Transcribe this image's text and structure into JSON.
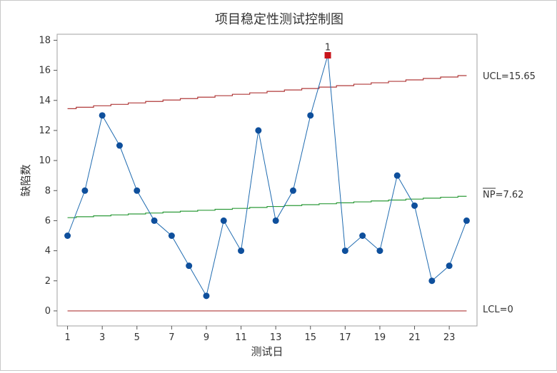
{
  "chart_data": {
    "type": "line",
    "title": "项目稳定性测试控制图",
    "xlabel": "测试日",
    "ylabel": "缺陷数",
    "x": [
      1,
      2,
      3,
      4,
      5,
      6,
      7,
      8,
      9,
      10,
      11,
      12,
      13,
      14,
      15,
      16,
      17,
      18,
      19,
      20,
      21,
      22,
      23,
      24
    ],
    "series": [
      {
        "values": [
          5,
          8,
          13,
          11,
          8,
          6,
          5,
          3,
          1,
          6,
          4,
          12,
          6,
          8,
          13,
          17,
          4,
          5,
          4,
          9,
          7,
          2,
          3,
          6
        ]
      }
    ],
    "xticks": [
      "1",
      "3",
      "5",
      "7",
      "9",
      "11",
      "13",
      "15",
      "17",
      "19",
      "21",
      "23"
    ],
    "yticks": [
      "0",
      "2",
      "4",
      "6",
      "8",
      "10",
      "12",
      "14",
      "16",
      "18"
    ],
    "xlim": [
      0.4,
      24.6
    ],
    "ylim": [
      -1,
      18.4
    ],
    "ucl_line": {
      "start": 13.45,
      "end": 15.65
    },
    "center_line": {
      "start": 6.2,
      "end": 7.62
    },
    "lcl_line": {
      "start": 0,
      "end": 0
    },
    "labels": {
      "ucl": "UCL=15.65",
      "center": "NP=7.62",
      "lcl": "LCL=0"
    },
    "out_of_control": [
      {
        "x": 16,
        "y": 17,
        "test": "1"
      }
    ],
    "colors": {
      "series": "#1f6bb0",
      "point": "#0e4f9c",
      "flag": "#c8151b",
      "limit": "#b03a3a",
      "center": "#2e9b3a"
    },
    "grid": false
  }
}
